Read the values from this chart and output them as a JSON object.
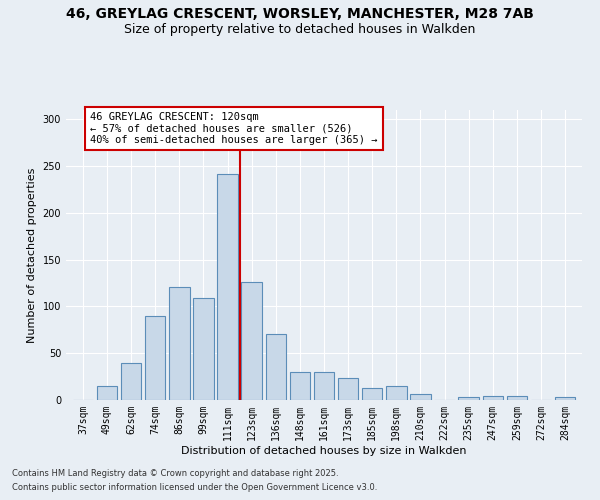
{
  "title_line1": "46, GREYLAG CRESCENT, WORSLEY, MANCHESTER, M28 7AB",
  "title_line2": "Size of property relative to detached houses in Walkden",
  "xlabel": "Distribution of detached houses by size in Walkden",
  "ylabel": "Number of detached properties",
  "categories": [
    "37sqm",
    "49sqm",
    "62sqm",
    "74sqm",
    "86sqm",
    "99sqm",
    "111sqm",
    "123sqm",
    "136sqm",
    "148sqm",
    "161sqm",
    "173sqm",
    "185sqm",
    "198sqm",
    "210sqm",
    "222sqm",
    "235sqm",
    "247sqm",
    "259sqm",
    "272sqm",
    "284sqm"
  ],
  "values": [
    0,
    15,
    40,
    90,
    121,
    109,
    242,
    126,
    71,
    30,
    30,
    24,
    13,
    15,
    6,
    0,
    3,
    4,
    4,
    0,
    3
  ],
  "bar_color": "#c8d8e8",
  "bar_edge_color": "#5b8db8",
  "vline_x": 6.5,
  "vline_color": "#cc0000",
  "annotation_text": "46 GREYLAG CRESCENT: 120sqm\n← 57% of detached houses are smaller (526)\n40% of semi-detached houses are larger (365) →",
  "annotation_box_color": "#ffffff",
  "annotation_box_edge": "#cc0000",
  "ylim": [
    0,
    310
  ],
  "yticks": [
    0,
    50,
    100,
    150,
    200,
    250,
    300
  ],
  "bg_color": "#e8eef4",
  "footer_line1": "Contains HM Land Registry data © Crown copyright and database right 2025.",
  "footer_line2": "Contains public sector information licensed under the Open Government Licence v3.0.",
  "title_fontsize": 10,
  "subtitle_fontsize": 9,
  "tick_fontsize": 7,
  "label_fontsize": 8,
  "ann_fontsize": 7.5,
  "footer_fontsize": 6
}
